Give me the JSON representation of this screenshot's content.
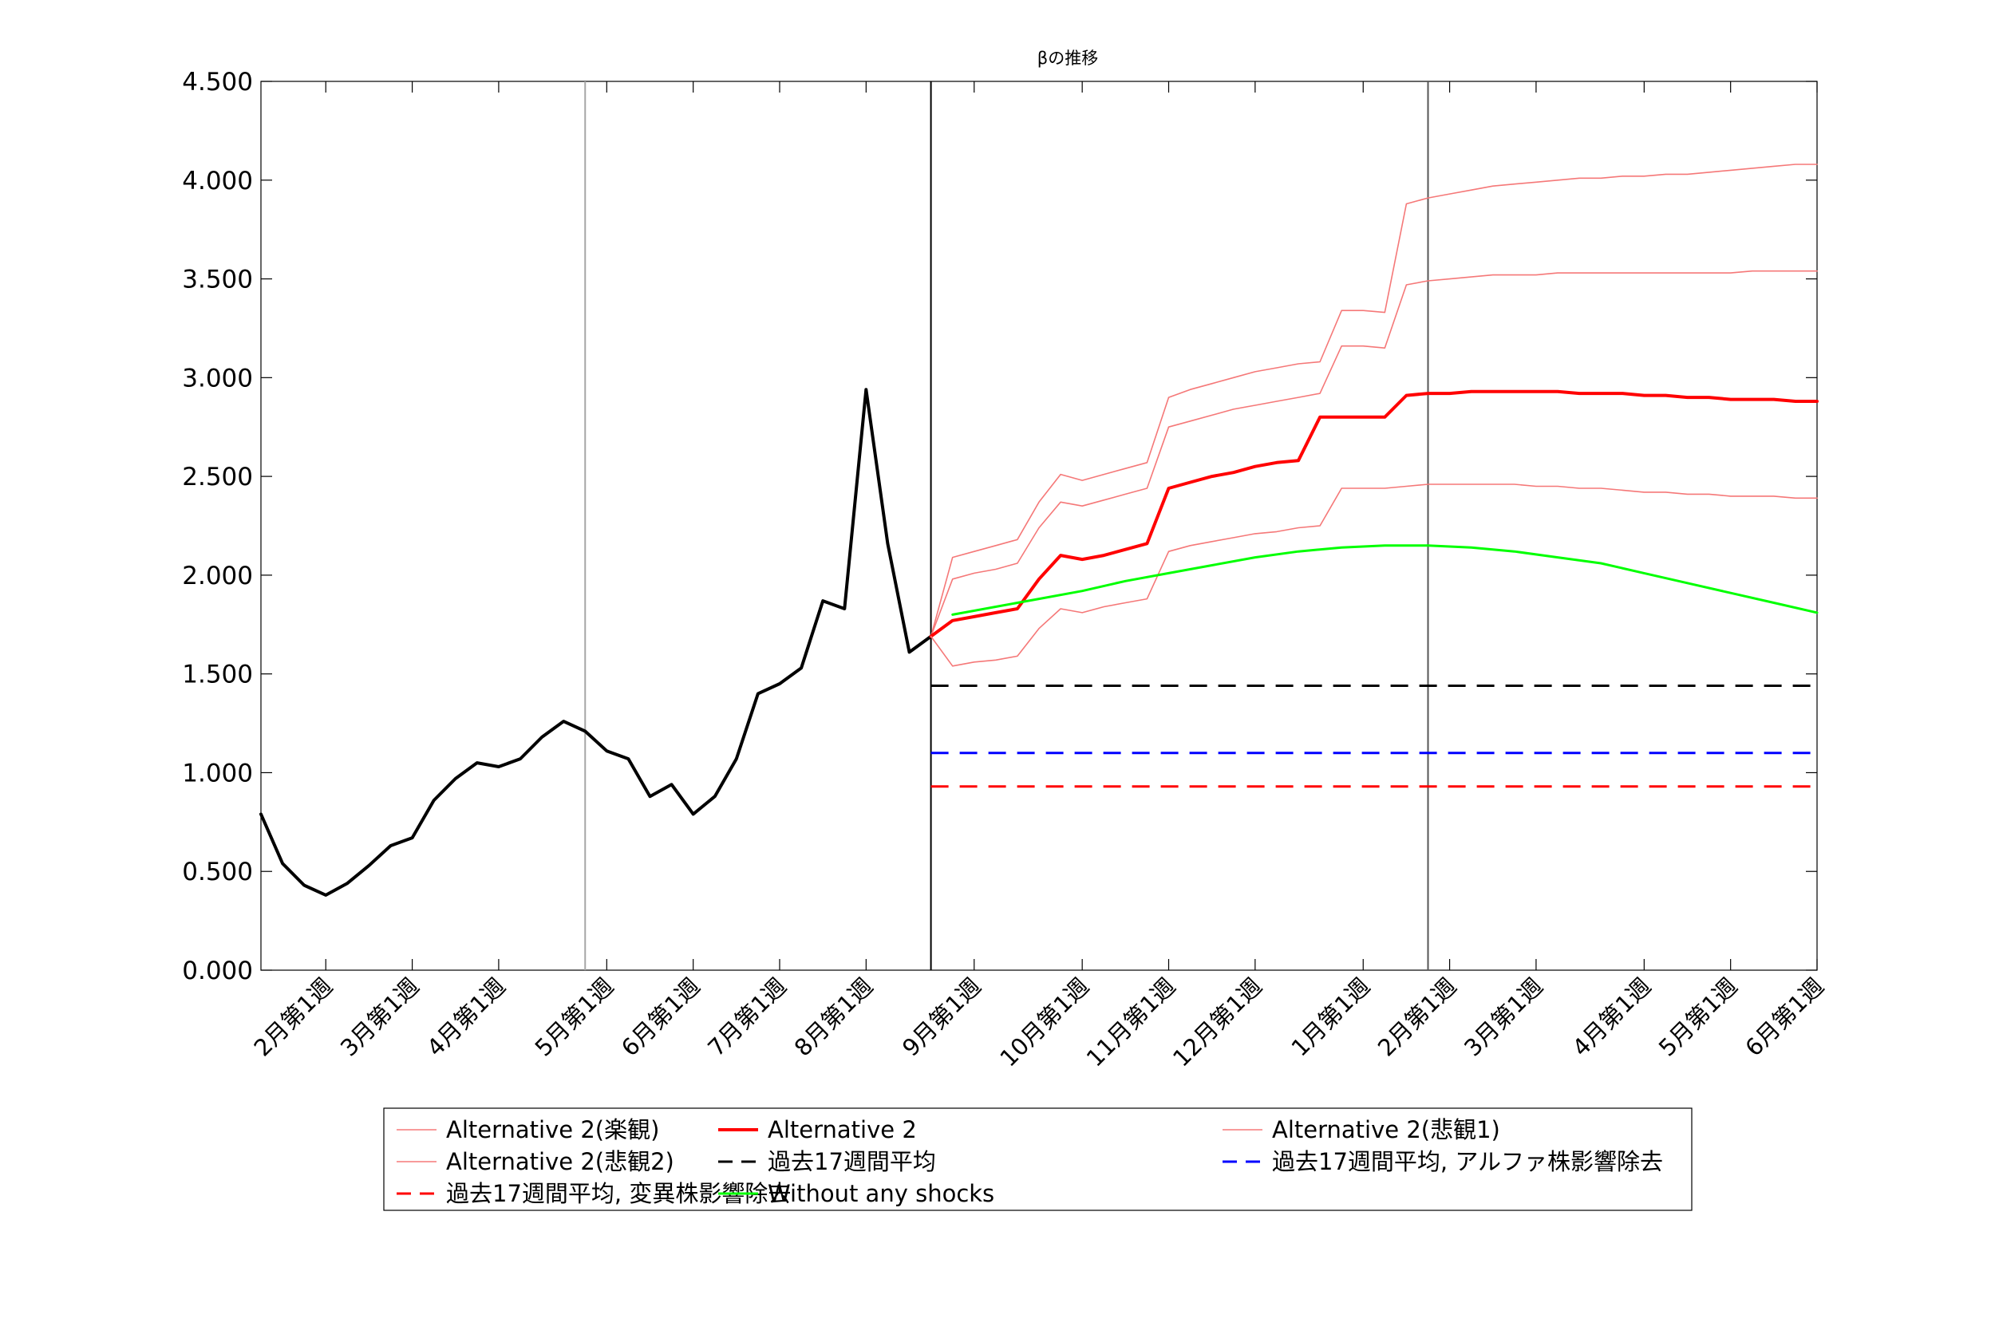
{
  "chart_data": {
    "type": "line",
    "title": "βの推移",
    "ylim": [
      0,
      4.5
    ],
    "yticks": [
      "0.000",
      "0.500",
      "1.000",
      "1.500",
      "2.000",
      "2.500",
      "3.000",
      "3.500",
      "4.000",
      "4.500"
    ],
    "ytick_values": [
      0,
      0.5,
      1.0,
      1.5,
      2.0,
      2.5,
      3.0,
      3.5,
      4.0,
      4.5
    ],
    "xlim": [
      0,
      72
    ],
    "xticks": [
      {
        "x": 3,
        "label": "2月第1週"
      },
      {
        "x": 7,
        "label": "3月第1週"
      },
      {
        "x": 11,
        "label": "4月第1週"
      },
      {
        "x": 16,
        "label": "5月第1週"
      },
      {
        "x": 20,
        "label": "6月第1週"
      },
      {
        "x": 24,
        "label": "7月第1週"
      },
      {
        "x": 28,
        "label": "8月第1週"
      },
      {
        "x": 33,
        "label": "9月第1週"
      },
      {
        "x": 38,
        "label": "10月第1週"
      },
      {
        "x": 42,
        "label": "11月第1週"
      },
      {
        "x": 46,
        "label": "12月第1週"
      },
      {
        "x": 51,
        "label": "1月第1週"
      },
      {
        "x": 55,
        "label": "2月第1週"
      },
      {
        "x": 59,
        "label": "3月第1週"
      },
      {
        "x": 64,
        "label": "4月第1週"
      },
      {
        "x": 68,
        "label": "5月第1週"
      },
      {
        "x": 72,
        "label": "6月第1週"
      }
    ],
    "vlines": [
      {
        "x": 15,
        "color": "#a6a6a6"
      },
      {
        "x": 31,
        "color": "#000000"
      },
      {
        "x": 54,
        "color": "#555555"
      }
    ],
    "grid": false,
    "legend_placement": "bottom",
    "series": [
      {
        "name": "",
        "color": "#000000",
        "width": 4,
        "dash": false,
        "x": [
          0,
          1,
          2,
          3,
          4,
          5,
          6,
          7,
          8,
          9,
          10,
          11,
          12,
          13,
          14,
          15,
          16,
          17,
          18,
          19,
          20,
          21,
          22,
          23,
          24,
          25,
          26,
          27,
          28,
          29,
          30,
          31
        ],
        "y": [
          0.79,
          0.54,
          0.43,
          0.38,
          0.44,
          0.53,
          0.63,
          0.67,
          0.86,
          0.97,
          1.05,
          1.03,
          1.07,
          1.18,
          1.26,
          1.21,
          1.11,
          1.07,
          0.88,
          0.94,
          0.79,
          0.88,
          1.07,
          1.4,
          1.45,
          1.53,
          1.87,
          1.83,
          2.94,
          2.16,
          1.61,
          1.69
        ]
      },
      {
        "name": "Alternative 2(楽観)",
        "color": "#f57878",
        "width": 1.6,
        "dash": false,
        "x": [
          31,
          32,
          33,
          34,
          35,
          36,
          37,
          38,
          39,
          40,
          41,
          42,
          43,
          44,
          45,
          46,
          47,
          48,
          49,
          50,
          51,
          52,
          53,
          54,
          55,
          56,
          57,
          58,
          59,
          60,
          61,
          62,
          63,
          64,
          65,
          66,
          67,
          68,
          69,
          70,
          71,
          72
        ],
        "y": [
          1.69,
          2.09,
          2.12,
          2.15,
          2.18,
          2.37,
          2.51,
          2.48,
          2.51,
          2.54,
          2.57,
          2.9,
          2.94,
          2.97,
          3.0,
          3.03,
          3.05,
          3.07,
          3.08,
          3.34,
          3.34,
          3.33,
          3.88,
          3.91,
          3.93,
          3.95,
          3.97,
          3.98,
          3.99,
          4.0,
          4.01,
          4.01,
          4.02,
          4.02,
          4.03,
          4.03,
          4.04,
          4.05,
          4.06,
          4.07,
          4.08,
          4.08
        ]
      },
      {
        "name": "Alternative 2(悲観2)",
        "color": "#f57878",
        "width": 1.6,
        "dash": false,
        "x": [
          31,
          32,
          33,
          34,
          35,
          36,
          37,
          38,
          39,
          40,
          41,
          42,
          43,
          44,
          45,
          46,
          47,
          48,
          49,
          50,
          51,
          52,
          53,
          54,
          55,
          56,
          57,
          58,
          59,
          60,
          61,
          62,
          63,
          64,
          65,
          66,
          67,
          68,
          69,
          70,
          71,
          72
        ],
        "y": [
          1.69,
          1.98,
          2.01,
          2.03,
          2.06,
          2.24,
          2.37,
          2.35,
          2.38,
          2.41,
          2.44,
          2.75,
          2.78,
          2.81,
          2.84,
          2.86,
          2.88,
          2.9,
          2.92,
          3.16,
          3.16,
          3.15,
          3.47,
          3.49,
          3.5,
          3.51,
          3.52,
          3.52,
          3.52,
          3.53,
          3.53,
          3.53,
          3.53,
          3.53,
          3.53,
          3.53,
          3.53,
          3.53,
          3.54,
          3.54,
          3.54,
          3.54
        ]
      },
      {
        "name": "Alternative 2",
        "color": "#ff0000",
        "width": 4,
        "dash": false,
        "x": [
          31,
          32,
          33,
          34,
          35,
          36,
          37,
          38,
          39,
          40,
          41,
          42,
          43,
          44,
          45,
          46,
          47,
          48,
          49,
          50,
          51,
          52,
          53,
          54,
          55,
          56,
          57,
          58,
          59,
          60,
          61,
          62,
          63,
          64,
          65,
          66,
          67,
          68,
          69,
          70,
          71,
          72
        ],
        "y": [
          1.69,
          1.77,
          1.79,
          1.81,
          1.83,
          1.98,
          2.1,
          2.08,
          2.1,
          2.13,
          2.16,
          2.44,
          2.47,
          2.5,
          2.52,
          2.55,
          2.57,
          2.58,
          2.8,
          2.8,
          2.8,
          2.8,
          2.91,
          2.92,
          2.92,
          2.93,
          2.93,
          2.93,
          2.93,
          2.93,
          2.92,
          2.92,
          2.92,
          2.91,
          2.91,
          2.9,
          2.9,
          2.89,
          2.89,
          2.89,
          2.88,
          2.88
        ]
      },
      {
        "name": "過去17週間平均",
        "color": "#000000",
        "width": 3,
        "dash": true,
        "x": [
          31,
          72
        ],
        "y": [
          1.44,
          1.44
        ]
      },
      {
        "name": "Alternative 2(悲観1)",
        "color": "#f57878",
        "width": 1.6,
        "dash": false,
        "x": [
          31,
          32,
          33,
          34,
          35,
          36,
          37,
          38,
          39,
          40,
          41,
          42,
          43,
          44,
          45,
          46,
          47,
          48,
          49,
          50,
          51,
          52,
          53,
          54,
          55,
          56,
          57,
          58,
          59,
          60,
          61,
          62,
          63,
          64,
          65,
          66,
          67,
          68,
          69,
          70,
          71,
          72
        ],
        "y": [
          1.69,
          1.54,
          1.56,
          1.57,
          1.59,
          1.73,
          1.83,
          1.81,
          1.84,
          1.86,
          1.88,
          2.12,
          2.15,
          2.17,
          2.19,
          2.21,
          2.22,
          2.24,
          2.25,
          2.44,
          2.44,
          2.44,
          2.45,
          2.46,
          2.46,
          2.46,
          2.46,
          2.46,
          2.45,
          2.45,
          2.44,
          2.44,
          2.43,
          2.42,
          2.42,
          2.41,
          2.41,
          2.4,
          2.4,
          2.4,
          2.39,
          2.39
        ]
      },
      {
        "name": "過去17週間平均, アルファ株影響除去",
        "color": "#0000ff",
        "width": 3,
        "dash": true,
        "x": [
          31,
          72
        ],
        "y": [
          1.1,
          1.1
        ]
      },
      {
        "name": "過去17週間平均, 変異株影響除去",
        "color": "#ff0000",
        "width": 3,
        "dash": true,
        "x": [
          31,
          72
        ],
        "y": [
          0.93,
          0.93
        ]
      },
      {
        "name": "Without any shocks",
        "color": "#00ff00",
        "width": 3,
        "dash": false,
        "x": [
          32,
          34,
          36,
          38,
          40,
          42,
          44,
          46,
          48,
          50,
          52,
          54,
          56,
          58,
          60,
          62,
          64,
          66,
          68,
          70,
          72
        ],
        "y": [
          1.8,
          1.84,
          1.88,
          1.92,
          1.97,
          2.01,
          2.05,
          2.09,
          2.12,
          2.14,
          2.15,
          2.15,
          2.14,
          2.12,
          2.09,
          2.06,
          2.01,
          1.96,
          1.91,
          1.86,
          1.81
        ]
      }
    ],
    "legend_order": [
      1,
      2,
      7,
      3,
      4,
      8,
      5,
      6
    ]
  }
}
